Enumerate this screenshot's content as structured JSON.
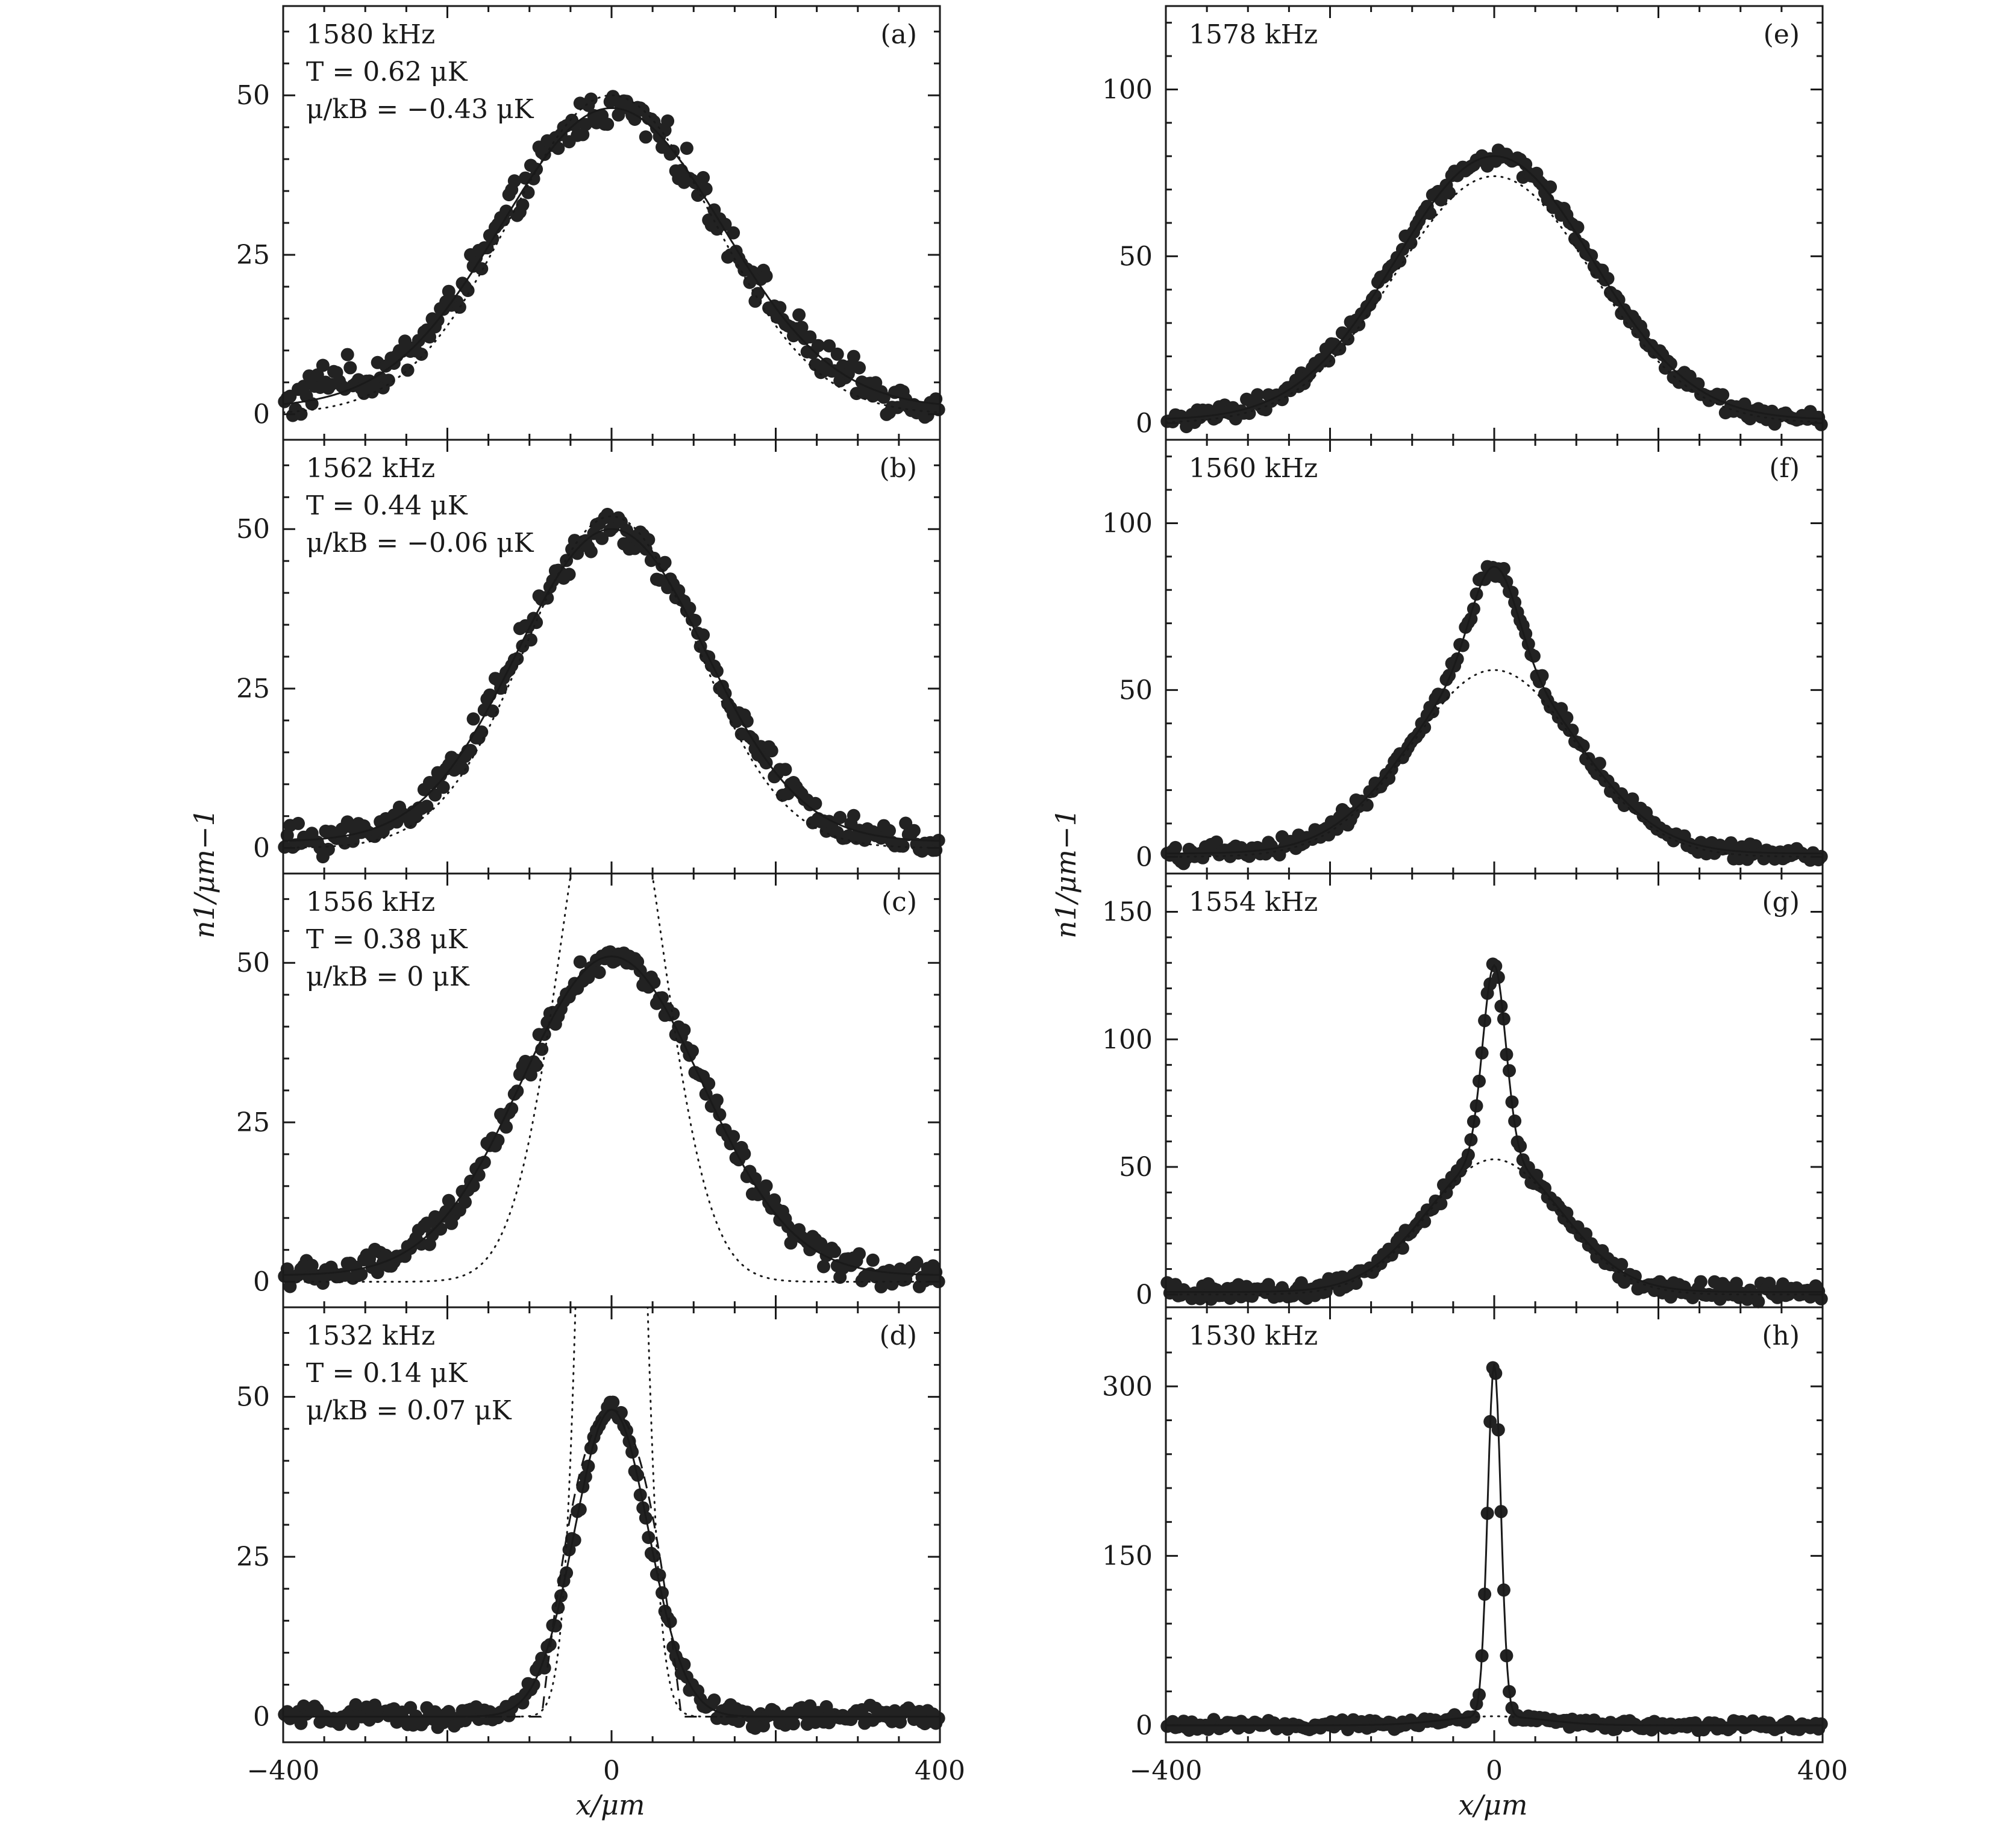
{
  "figure": {
    "ylabel": "n1/μm−1",
    "xlabel": "x/μm",
    "colors": {
      "data": "#222222",
      "axis": "#1a1a1a",
      "background": "#ffffff"
    }
  },
  "chart_data": [
    {
      "id": "a",
      "type": "scatter",
      "panel_label": "(a)",
      "annotations": [
        "1580 kHz",
        "T = 0.62 μK",
        "μ/kB = −0.43 μK"
      ],
      "xlim": [
        -400,
        400
      ],
      "ylim": [
        -4,
        64
      ],
      "yticks": [
        0,
        25,
        50
      ],
      "ytick_labels": [
        "0",
        "25",
        "50"
      ],
      "xticks": [
        -400,
        0,
        400
      ],
      "xtick_labels": [
        "",
        "",
        ""
      ],
      "model": {
        "center": 0,
        "fit_peak": 47,
        "fit_width": 135,
        "fit_offset": 1,
        "guide_peak": 50,
        "guide_width": 125,
        "noise": 2.5,
        "bump": [
          -340,
          10,
          20
        ]
      },
      "series": [
        {
          "name": "data",
          "style": "points"
        },
        {
          "name": "fit",
          "style": "solid"
        },
        {
          "name": "thermal",
          "style": "dotted"
        }
      ]
    },
    {
      "id": "b",
      "type": "scatter",
      "panel_label": "(b)",
      "annotations": [
        "1562 kHz",
        "T = 0.44 μK",
        "μ/kB = −0.06 μK"
      ],
      "xlim": [
        -400,
        400
      ],
      "ylim": [
        -4,
        64
      ],
      "yticks": [
        0,
        25,
        50
      ],
      "ytick_labels": [
        "0",
        "25",
        "50"
      ],
      "xticks": [
        -400,
        0,
        400
      ],
      "xtick_labels": [
        "",
        "",
        ""
      ],
      "model": {
        "center": 0,
        "fit_peak": 49,
        "fit_width": 115,
        "fit_offset": 1,
        "guide_peak": 52,
        "guide_width": 105,
        "noise": 2.0
      },
      "series": [
        {
          "name": "data",
          "style": "points"
        },
        {
          "name": "fit",
          "style": "solid"
        },
        {
          "name": "thermal",
          "style": "dotted"
        }
      ]
    },
    {
      "id": "c",
      "type": "scatter",
      "panel_label": "(c)",
      "annotations": [
        "1556 kHz",
        "T = 0.38 μK",
        "μ/kB = 0 μK"
      ],
      "xlim": [
        -400,
        400
      ],
      "ylim": [
        -4,
        64
      ],
      "yticks": [
        0,
        25,
        50
      ],
      "ytick_labels": [
        "0",
        "25",
        "50"
      ],
      "xticks": [
        -400,
        0,
        400
      ],
      "xtick_labels": [
        "",
        "",
        ""
      ],
      "model": {
        "center": 0,
        "fit_peak": 50,
        "fit_width": 110,
        "fit_offset": 1,
        "guide_peak": 90,
        "guide_width": 60,
        "noise": 1.8
      },
      "series": [
        {
          "name": "data",
          "style": "points"
        },
        {
          "name": "fit",
          "style": "solid"
        },
        {
          "name": "thermal",
          "style": "dotted"
        }
      ]
    },
    {
      "id": "d",
      "type": "scatter",
      "panel_label": "(d)",
      "annotations": [
        "1532 kHz",
        "T = 0.14 μK",
        "μ/kB = 0.07 μK"
      ],
      "xlim": [
        -400,
        400
      ],
      "ylim": [
        -4,
        64
      ],
      "yticks": [
        0,
        25,
        50
      ],
      "ytick_labels": [
        "0",
        "25",
        "50"
      ],
      "xticks": [
        -400,
        0,
        400
      ],
      "xtick_labels": [
        "−400",
        "0",
        "400"
      ],
      "model": {
        "center": 0,
        "fit_peak": 48,
        "fit_width": 45,
        "fit_offset": 0,
        "guide_peak": 300,
        "guide_width": 25,
        "noise": 1.3,
        "dashed": true
      },
      "series": [
        {
          "name": "data",
          "style": "points"
        },
        {
          "name": "fit",
          "style": "solid"
        },
        {
          "name": "thermal",
          "style": "dotted"
        },
        {
          "name": "condensate",
          "style": "dashed"
        }
      ]
    },
    {
      "id": "e",
      "type": "scatter",
      "panel_label": "(e)",
      "annotations": [
        "1578 kHz"
      ],
      "xlim": [
        -400,
        400
      ],
      "ylim": [
        -5,
        125
      ],
      "yticks": [
        0,
        50,
        100
      ],
      "ytick_labels": [
        "0",
        "50",
        "100"
      ],
      "xticks": [
        -400,
        0,
        400
      ],
      "xtick_labels": [
        "",
        "",
        ""
      ],
      "model": {
        "center": 0,
        "fit_peak": 79,
        "fit_width": 120,
        "fit_offset": 1,
        "guide_peak": 74,
        "guide_width": 120,
        "noise": 2.2
      },
      "series": [
        {
          "name": "data",
          "style": "points"
        },
        {
          "name": "fit",
          "style": "solid"
        },
        {
          "name": "thermal",
          "style": "dotted"
        }
      ]
    },
    {
      "id": "f",
      "type": "scatter",
      "panel_label": "(f)",
      "annotations": [
        "1560 kHz"
      ],
      "xlim": [
        -400,
        400
      ],
      "ylim": [
        -5,
        125
      ],
      "yticks": [
        0,
        50,
        100
      ],
      "ytick_labels": [
        "0",
        "50",
        "100"
      ],
      "xticks": [
        -400,
        0,
        400
      ],
      "xtick_labels": [
        "",
        "",
        ""
      ],
      "model": {
        "center": 0,
        "fit_peak": 56,
        "fit_width": 100,
        "fit_offset": 1,
        "guide_peak": 56,
        "guide_width": 100,
        "noise": 2.2,
        "narrow_peak": 30,
        "narrow_width": 28
      },
      "series": [
        {
          "name": "data",
          "style": "points"
        },
        {
          "name": "fit",
          "style": "solid"
        },
        {
          "name": "thermal",
          "style": "dotted"
        }
      ]
    },
    {
      "id": "g",
      "type": "scatter",
      "panel_label": "(g)",
      "annotations": [
        "1554 kHz"
      ],
      "xlim": [
        -400,
        400
      ],
      "ylim": [
        -5,
        165
      ],
      "yticks": [
        0,
        50,
        100,
        150
      ],
      "ytick_labels": [
        "0",
        "50",
        "100",
        "150"
      ],
      "xticks": [
        -400,
        0,
        400
      ],
      "xtick_labels": [
        "",
        "",
        ""
      ],
      "model": {
        "center": 0,
        "fit_peak": 53,
        "fit_width": 80,
        "fit_offset": 1,
        "guide_peak": 53,
        "guide_width": 80,
        "noise": 2.6,
        "narrow_peak": 75,
        "narrow_width": 14
      },
      "series": [
        {
          "name": "data",
          "style": "points"
        },
        {
          "name": "fit",
          "style": "solid"
        },
        {
          "name": "thermal",
          "style": "dotted"
        }
      ]
    },
    {
      "id": "h",
      "type": "scatter",
      "panel_label": "(h)",
      "annotations": [
        "1530 kHz"
      ],
      "xlim": [
        -400,
        400
      ],
      "ylim": [
        -15,
        370
      ],
      "yticks": [
        0,
        150,
        300
      ],
      "ytick_labels": [
        "0",
        "150",
        "300"
      ],
      "xticks": [
        -400,
        0,
        400
      ],
      "xtick_labels": [
        "−400",
        "0",
        "400"
      ],
      "model": {
        "center": 0,
        "fit_peak": 8,
        "fit_width": 60,
        "fit_offset": 0,
        "guide_peak": 8,
        "guide_width": 60,
        "noise": 3.5,
        "narrow_peak": 312,
        "narrow_width": 8
      },
      "series": [
        {
          "name": "data",
          "style": "points"
        },
        {
          "name": "fit",
          "style": "solid"
        },
        {
          "name": "thermal",
          "style": "dotted"
        }
      ]
    }
  ]
}
